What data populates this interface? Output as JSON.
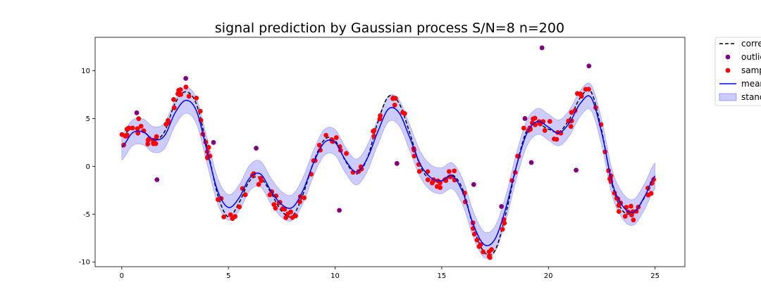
{
  "chart_data": {
    "type": "scatter",
    "title": "signal prediction by Gaussian process S/N=8 n=200",
    "xlim": [
      -1.25,
      26.4
    ],
    "ylim": [
      -10.5,
      13.5
    ],
    "x_ticks": [
      0,
      5,
      10,
      15,
      20,
      25
    ],
    "y_ticks": [
      -10,
      -5,
      0,
      5,
      10
    ],
    "grid": false,
    "legend_placement": "outside-top-right",
    "colors": {
      "correct": "#000000",
      "outliers": "#800080",
      "samples": "#ff0000",
      "mean": "#0000ff",
      "band": "#0000ff"
    },
    "legend": [
      {
        "key": "correct",
        "label": "correct"
      },
      {
        "key": "outliers",
        "label": "outliers"
      },
      {
        "key": "samples",
        "label": "samples"
      },
      {
        "key": "mean",
        "label": "mean"
      },
      {
        "key": "band",
        "label": "standard deviation"
      }
    ],
    "correct_knots": [
      [
        0,
        3.2
      ],
      [
        0.5,
        4.0
      ],
      [
        1,
        3.7
      ],
      [
        1.5,
        2.8
      ],
      [
        2,
        3.6
      ],
      [
        2.5,
        6.6
      ],
      [
        3,
        7.8
      ],
      [
        3.5,
        6.5
      ],
      [
        4,
        2.0
      ],
      [
        4.5,
        -3.0
      ],
      [
        5,
        -5.3
      ],
      [
        5.5,
        -3.8
      ],
      [
        6,
        -1.5
      ],
      [
        6.5,
        -1.2
      ],
      [
        7,
        -2.8
      ],
      [
        7.5,
        -4.7
      ],
      [
        8,
        -5.2
      ],
      [
        8.5,
        -2.9
      ],
      [
        9,
        0.5
      ],
      [
        9.5,
        2.8
      ],
      [
        10,
        2.7
      ],
      [
        10.5,
        0.5
      ],
      [
        11,
        -0.8
      ],
      [
        11.5,
        0.8
      ],
      [
        12,
        4.6
      ],
      [
        12.5,
        7.3
      ],
      [
        13,
        6.6
      ],
      [
        13.5,
        3.5
      ],
      [
        14,
        0.0
      ],
      [
        14.5,
        -1.5
      ],
      [
        15,
        -1.5
      ],
      [
        15.5,
        -0.9
      ],
      [
        16,
        -2.5
      ],
      [
        16.5,
        -6.5
      ],
      [
        17,
        -9.0
      ],
      [
        17.5,
        -8.8
      ],
      [
        18,
        -5.0
      ],
      [
        18.5,
        0.0
      ],
      [
        19,
        3.8
      ],
      [
        19.5,
        4.4
      ],
      [
        20,
        3.9
      ],
      [
        20.5,
        3.6
      ],
      [
        21,
        5.0
      ],
      [
        21.5,
        7.2
      ],
      [
        22,
        7.8
      ],
      [
        22.5,
        3.7
      ],
      [
        23,
        -2.0
      ],
      [
        23.5,
        -4.7
      ],
      [
        24,
        -4.8
      ],
      [
        24.5,
        -3.3
      ],
      [
        25,
        -1.5
      ]
    ],
    "mean_knots": [
      [
        0,
        2.0
      ],
      [
        0.5,
        3.5
      ],
      [
        1,
        3.6
      ],
      [
        1.5,
        2.8
      ],
      [
        2,
        3.2
      ],
      [
        2.5,
        5.6
      ],
      [
        3,
        6.9
      ],
      [
        3.5,
        5.8
      ],
      [
        4,
        1.6
      ],
      [
        4.5,
        -2.6
      ],
      [
        5,
        -4.3
      ],
      [
        5.5,
        -3.3
      ],
      [
        6,
        -1.2
      ],
      [
        6.5,
        -0.8
      ],
      [
        7,
        -2.6
      ],
      [
        7.5,
        -4.0
      ],
      [
        8,
        -4.3
      ],
      [
        8.5,
        -2.5
      ],
      [
        9,
        0.4
      ],
      [
        9.5,
        2.5
      ],
      [
        10,
        2.5
      ],
      [
        10.5,
        0.6
      ],
      [
        11,
        -0.6
      ],
      [
        11.5,
        0.8
      ],
      [
        12,
        3.6
      ],
      [
        12.5,
        6.0
      ],
      [
        13,
        5.6
      ],
      [
        13.5,
        3.0
      ],
      [
        14,
        0.2
      ],
      [
        14.5,
        -1.2
      ],
      [
        15,
        -1.5
      ],
      [
        15.5,
        -1.0
      ],
      [
        16,
        -2.8
      ],
      [
        16.5,
        -6.2
      ],
      [
        17,
        -8.2
      ],
      [
        17.5,
        -7.6
      ],
      [
        18,
        -4.4
      ],
      [
        18.5,
        0.0
      ],
      [
        19,
        3.5
      ],
      [
        19.5,
        4.7
      ],
      [
        20,
        4.1
      ],
      [
        20.5,
        3.5
      ],
      [
        21,
        4.6
      ],
      [
        21.5,
        6.6
      ],
      [
        22,
        7.2
      ],
      [
        22.5,
        3.5
      ],
      [
        23,
        -1.8
      ],
      [
        23.5,
        -4.2
      ],
      [
        24,
        -4.8
      ],
      [
        24.5,
        -3.2
      ],
      [
        25,
        -1.0
      ]
    ],
    "band_halfwidth": 1.35,
    "outliers": [
      [
        0.7,
        5.6
      ],
      [
        1.65,
        -1.4
      ],
      [
        3.0,
        9.2
      ],
      [
        4.3,
        2.5
      ],
      [
        6.3,
        1.9
      ],
      [
        10.2,
        -4.6
      ],
      [
        12.9,
        0.3
      ],
      [
        16.5,
        -1.9
      ],
      [
        17.8,
        -4.2
      ],
      [
        18.9,
        5.0
      ],
      [
        19.2,
        0.4
      ],
      [
        19.7,
        12.4
      ],
      [
        21.3,
        -0.4
      ],
      [
        21.9,
        10.5
      ]
    ],
    "sample_count": 200,
    "sample_noise": 0.45
  }
}
